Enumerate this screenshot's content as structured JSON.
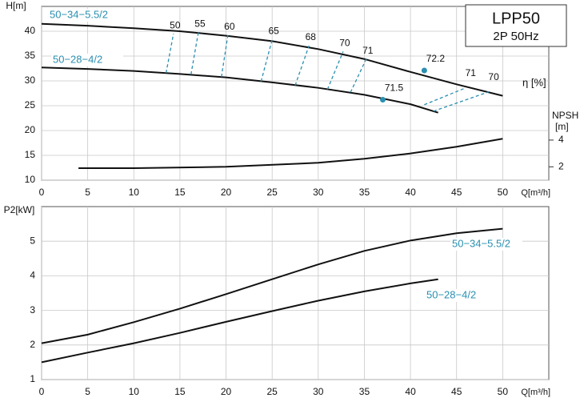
{
  "chart_data": [
    {
      "type": "line",
      "title": "LPP50",
      "subtitle": "2P  50Hz",
      "ylabel": "H[m]",
      "xlabel": "Q[m³/h]",
      "y2label": "NPSH",
      "y2unit": "[m]",
      "xlim": [
        0,
        55
      ],
      "xticks": [
        0,
        5,
        10,
        15,
        20,
        25,
        30,
        35,
        40,
        45,
        50
      ],
      "ylim": [
        10,
        45
      ],
      "yticks": [
        10,
        15,
        20,
        25,
        30,
        35,
        40
      ],
      "y2lim": [
        1,
        14
      ],
      "y2ticks": [
        2,
        4
      ],
      "grid": true,
      "label_color": "#2a8fb0",
      "series": [
        {
          "name": "50−34−5.5/2",
          "color": "#111111",
          "x": [
            0,
            5,
            10,
            15,
            20,
            25,
            30,
            35,
            40,
            45,
            50
          ],
          "values": [
            41.5,
            41.1,
            40.6,
            40,
            39.1,
            38,
            36.4,
            34.4,
            31.8,
            29.3,
            27
          ]
        },
        {
          "name": "50−28−4/2",
          "color": "#111111",
          "x": [
            0,
            5,
            10,
            15,
            20,
            25,
            30,
            35,
            40,
            43
          ],
          "values": [
            32.7,
            32.4,
            32,
            31.4,
            30.7,
            29.7,
            28.6,
            27.2,
            25.3,
            23.6
          ]
        },
        {
          "color": "#111111",
          "axis": "y2",
          "x": [
            4,
            10,
            20,
            30,
            35,
            40,
            45,
            50
          ],
          "values": [
            1.9,
            1.9,
            2.0,
            2.3,
            2.6,
            3.0,
            3.5,
            4.1
          ]
        }
      ],
      "efficiency": {
        "label": "η [%]",
        "color": "#2a8fb0",
        "lines": [
          {
            "value": 50,
            "x": [
              13.5,
              14.3
            ],
            "y": [
              31.6,
              39.5
            ]
          },
          {
            "value": 55,
            "x": [
              16.2,
              17
            ],
            "y": [
              31.3,
              39.8
            ]
          },
          {
            "value": 60,
            "x": [
              19.5,
              20.2
            ],
            "y": [
              30.8,
              39.2
            ]
          },
          {
            "value": 65,
            "x": [
              23.8,
              25
            ],
            "y": [
              29.9,
              38.3
            ]
          },
          {
            "value": 68,
            "x": [
              27.5,
              29
            ],
            "y": [
              29.1,
              37.1
            ]
          },
          {
            "value": 70,
            "x": [
              31,
              32.7
            ],
            "y": [
              28.3,
              35.9
            ]
          },
          {
            "value": 71,
            "x": [
              33.5,
              35.2
            ],
            "y": [
              27.7,
              34.4
            ]
          },
          {
            "value": 71,
            "x": [
              41.5,
              46
            ],
            "y": [
              25.2,
              28.6
            ]
          },
          {
            "value": 70,
            "x": [
              42.5,
              48.5
            ],
            "y": [
              23.9,
              27.8
            ]
          }
        ],
        "points": [
          {
            "value": 72.2,
            "x": 41.5,
            "y": 32.1
          },
          {
            "value": 71.5,
            "x": 37,
            "y": 26.2
          }
        ]
      }
    },
    {
      "type": "line",
      "ylabel": "P2[kW]",
      "xlabel": "Q[m³/h]",
      "xlim": [
        0,
        55
      ],
      "xticks": [
        0,
        5,
        10,
        15,
        20,
        25,
        30,
        35,
        40,
        45,
        50
      ],
      "ylim": [
        1,
        6
      ],
      "yticks": [
        1,
        2,
        3,
        4,
        5
      ],
      "grid": true,
      "label_color": "#2a8fb0",
      "series": [
        {
          "name": "50−34−5.5/2",
          "color": "#111111",
          "x": [
            0,
            5,
            10,
            15,
            20,
            25,
            30,
            35,
            40,
            45,
            50
          ],
          "values": [
            2.05,
            2.3,
            2.66,
            3.05,
            3.47,
            3.9,
            4.33,
            4.72,
            5.02,
            5.23,
            5.36
          ]
        },
        {
          "name": "50−28−4/2",
          "color": "#111111",
          "x": [
            0,
            5,
            10,
            15,
            20,
            25,
            30,
            35,
            40,
            43
          ],
          "values": [
            1.5,
            1.78,
            2.05,
            2.35,
            2.67,
            2.98,
            3.28,
            3.55,
            3.78,
            3.9
          ]
        }
      ]
    }
  ]
}
